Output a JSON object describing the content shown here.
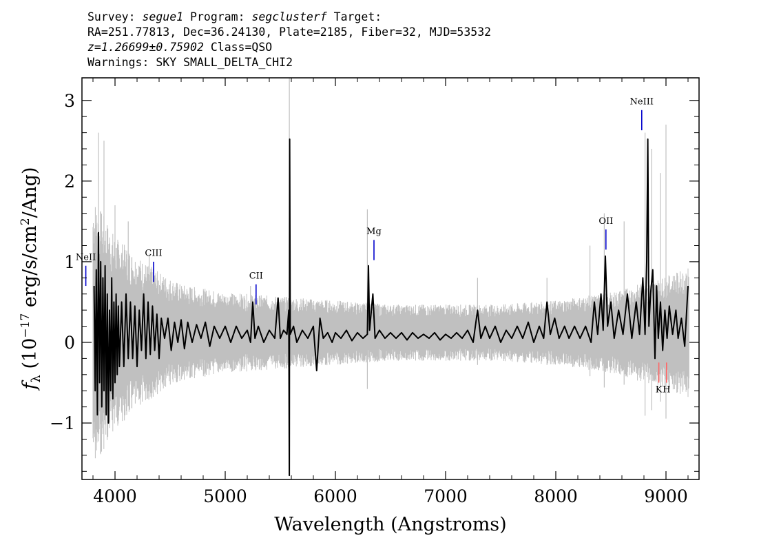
{
  "header": {
    "line1_prefix": "Survey: ",
    "survey": "segue1",
    "line1_mid": " Program: ",
    "program": "segclusterf",
    "line1_suffix": " Target:",
    "line2": "RA=251.77813, Dec=36.24130, Plate=2185, Fiber=32, MJD=53532",
    "redshift": "z=1.26699±0.75902",
    "class": " Class=QSO",
    "warnings": "Warnings: SKY SMALL_DELTA_CHI2"
  },
  "chart_data": {
    "type": "line",
    "xlabel": "Wavelength (Angstroms)",
    "ylabel": "f_λ (10^-17 erg/s/cm^2/Ang)",
    "xlim": [
      3700,
      9300
    ],
    "ylim": [
      -1.7,
      3.28
    ],
    "x_ticks": [
      {
        "value": 4000,
        "label": "4000"
      },
      {
        "value": 5000,
        "label": "5000"
      },
      {
        "value": 6000,
        "label": "6000"
      },
      {
        "value": 7000,
        "label": "7000"
      },
      {
        "value": 8000,
        "label": "8000"
      },
      {
        "value": 9000,
        "label": "9000"
      }
    ],
    "y_ticks": [
      {
        "value": -1,
        "label": "−1"
      },
      {
        "value": 0,
        "label": "0"
      },
      {
        "value": 1,
        "label": "1"
      },
      {
        "value": 2,
        "label": "2"
      },
      {
        "value": 3,
        "label": "3"
      }
    ],
    "series": [
      {
        "color": "#000000",
        "points": [
          [
            3810,
            0.7
          ],
          [
            3820,
            -0.6
          ],
          [
            3830,
            0.9
          ],
          [
            3840,
            -0.9
          ],
          [
            3850,
            1.36
          ],
          [
            3860,
            -0.5
          ],
          [
            3870,
            1.0
          ],
          [
            3880,
            -0.8
          ],
          [
            3890,
            0.8
          ],
          [
            3900,
            -0.6
          ],
          [
            3910,
            0.95
          ],
          [
            3920,
            -0.9
          ],
          [
            3930,
            0.6
          ],
          [
            3940,
            -1.0
          ],
          [
            3950,
            0.4
          ],
          [
            3960,
            -0.6
          ],
          [
            3970,
            0.8
          ],
          [
            3980,
            -0.7
          ],
          [
            3990,
            0.5
          ],
          [
            4000,
            -0.5
          ],
          [
            4010,
            0.6
          ],
          [
            4020,
            -0.4
          ],
          [
            4030,
            0.45
          ],
          [
            4040,
            -0.3
          ],
          [
            4060,
            0.5
          ],
          [
            4080,
            -0.3
          ],
          [
            4100,
            0.6
          ],
          [
            4120,
            -0.2
          ],
          [
            4140,
            0.5
          ],
          [
            4160,
            -0.2
          ],
          [
            4180,
            0.45
          ],
          [
            4200,
            -0.3
          ],
          [
            4220,
            0.4
          ],
          [
            4240,
            -0.1
          ],
          [
            4260,
            0.6
          ],
          [
            4280,
            -0.2
          ],
          [
            4300,
            0.5
          ],
          [
            4320,
            -0.15
          ],
          [
            4340,
            0.45
          ],
          [
            4360,
            -0.1
          ],
          [
            4380,
            0.35
          ],
          [
            4400,
            -0.2
          ],
          [
            4420,
            0.3
          ],
          [
            4450,
            0.05
          ],
          [
            4480,
            0.3
          ],
          [
            4510,
            -0.1
          ],
          [
            4540,
            0.25
          ],
          [
            4570,
            0.0
          ],
          [
            4600,
            0.28
          ],
          [
            4630,
            -0.08
          ],
          [
            4660,
            0.25
          ],
          [
            4700,
            0.0
          ],
          [
            4740,
            0.22
          ],
          [
            4780,
            0.05
          ],
          [
            4820,
            0.25
          ],
          [
            4860,
            -0.05
          ],
          [
            4900,
            0.2
          ],
          [
            4950,
            0.05
          ],
          [
            5000,
            0.2
          ],
          [
            5050,
            0.0
          ],
          [
            5100,
            0.2
          ],
          [
            5150,
            0.05
          ],
          [
            5200,
            0.15
          ],
          [
            5230,
            0.0
          ],
          [
            5250,
            0.5
          ],
          [
            5270,
            0.05
          ],
          [
            5300,
            0.2
          ],
          [
            5350,
            0.0
          ],
          [
            5400,
            0.15
          ],
          [
            5450,
            0.05
          ],
          [
            5480,
            0.55
          ],
          [
            5500,
            0.05
          ],
          [
            5530,
            0.15
          ],
          [
            5560,
            0.1
          ],
          [
            5577,
            0.4
          ],
          [
            5582,
            -1.65
          ],
          [
            5585,
            2.52
          ],
          [
            5590,
            0.1
          ],
          [
            5620,
            0.2
          ],
          [
            5650,
            0.0
          ],
          [
            5700,
            0.15
          ],
          [
            5750,
            0.05
          ],
          [
            5800,
            0.2
          ],
          [
            5830,
            -0.35
          ],
          [
            5860,
            0.3
          ],
          [
            5890,
            0.05
          ],
          [
            5930,
            0.12
          ],
          [
            5970,
            0.0
          ],
          [
            6000,
            0.12
          ],
          [
            6050,
            0.05
          ],
          [
            6100,
            0.15
          ],
          [
            6150,
            0.02
          ],
          [
            6200,
            0.12
          ],
          [
            6250,
            0.05
          ],
          [
            6290,
            0.1
          ],
          [
            6300,
            0.95
          ],
          [
            6310,
            0.15
          ],
          [
            6340,
            0.6
          ],
          [
            6360,
            0.05
          ],
          [
            6400,
            0.15
          ],
          [
            6450,
            0.05
          ],
          [
            6500,
            0.12
          ],
          [
            6550,
            0.05
          ],
          [
            6600,
            0.12
          ],
          [
            6650,
            0.03
          ],
          [
            6700,
            0.12
          ],
          [
            6750,
            0.05
          ],
          [
            6800,
            0.1
          ],
          [
            6850,
            0.05
          ],
          [
            6900,
            0.12
          ],
          [
            6950,
            0.03
          ],
          [
            7000,
            0.1
          ],
          [
            7050,
            0.05
          ],
          [
            7100,
            0.12
          ],
          [
            7150,
            0.05
          ],
          [
            7200,
            0.15
          ],
          [
            7250,
            0.0
          ],
          [
            7290,
            0.4
          ],
          [
            7320,
            0.05
          ],
          [
            7360,
            0.2
          ],
          [
            7400,
            0.05
          ],
          [
            7450,
            0.2
          ],
          [
            7500,
            0.0
          ],
          [
            7550,
            0.15
          ],
          [
            7600,
            0.05
          ],
          [
            7650,
            0.2
          ],
          [
            7700,
            0.05
          ],
          [
            7750,
            0.25
          ],
          [
            7800,
            0.0
          ],
          [
            7850,
            0.2
          ],
          [
            7890,
            0.05
          ],
          [
            7920,
            0.5
          ],
          [
            7950,
            0.1
          ],
          [
            7990,
            0.3
          ],
          [
            8030,
            0.05
          ],
          [
            8080,
            0.2
          ],
          [
            8120,
            0.05
          ],
          [
            8170,
            0.2
          ],
          [
            8220,
            0.05
          ],
          [
            8270,
            0.2
          ],
          [
            8320,
            0.0
          ],
          [
            8350,
            0.5
          ],
          [
            8380,
            0.1
          ],
          [
            8410,
            0.6
          ],
          [
            8430,
            0.15
          ],
          [
            8450,
            1.07
          ],
          [
            8470,
            0.2
          ],
          [
            8500,
            0.5
          ],
          [
            8530,
            0.05
          ],
          [
            8570,
            0.4
          ],
          [
            8610,
            0.1
          ],
          [
            8650,
            0.6
          ],
          [
            8690,
            0.05
          ],
          [
            8730,
            0.5
          ],
          [
            8760,
            0.1
          ],
          [
            8790,
            0.8
          ],
          [
            8810,
            0.1
          ],
          [
            8825,
            1.0
          ],
          [
            8835,
            2.52
          ],
          [
            8845,
            0.2
          ],
          [
            8860,
            0.6
          ],
          [
            8880,
            0.9
          ],
          [
            8900,
            -0.2
          ],
          [
            8915,
            0.7
          ],
          [
            8930,
            0.05
          ],
          [
            8950,
            0.5
          ],
          [
            8970,
            -0.1
          ],
          [
            8990,
            0.4
          ],
          [
            9010,
            0.05
          ],
          [
            9030,
            0.45
          ],
          [
            9060,
            0.1
          ],
          [
            9090,
            0.4
          ],
          [
            9110,
            0.05
          ],
          [
            9140,
            0.3
          ],
          [
            9170,
            -0.05
          ],
          [
            9200,
            0.7
          ]
        ]
      }
    ],
    "error_band": {
      "color": "#c0c0c0",
      "bounds": [
        [
          3800,
          1.7
        ],
        [
          4000,
          1.2
        ],
        [
          4200,
          0.95
        ],
        [
          4400,
          0.75
        ],
        [
          4600,
          0.6
        ],
        [
          5000,
          0.5
        ],
        [
          5500,
          0.45
        ],
        [
          6000,
          0.4
        ],
        [
          6500,
          0.35
        ],
        [
          7000,
          0.35
        ],
        [
          7500,
          0.35
        ],
        [
          8000,
          0.4
        ],
        [
          8500,
          0.5
        ],
        [
          9000,
          0.7
        ],
        [
          9200,
          0.8
        ]
      ],
      "spikes": [
        [
          3850,
          2.6
        ],
        [
          3900,
          2.5
        ],
        [
          4000,
          1.7
        ],
        [
          4120,
          1.5
        ],
        [
          4310,
          1.1
        ],
        [
          5230,
          0.7
        ],
        [
          5582,
          3.3
        ],
        [
          6290,
          1.65
        ],
        [
          7290,
          0.8
        ],
        [
          7920,
          0.8
        ],
        [
          8310,
          1.2
        ],
        [
          8440,
          1.6
        ],
        [
          8620,
          1.5
        ],
        [
          8810,
          2.6
        ],
        [
          8870,
          2.4
        ],
        [
          8950,
          2.1
        ],
        [
          9000,
          2.7
        ]
      ]
    },
    "lines": [
      {
        "label": "NeII",
        "x": 3735,
        "color": "#0000cc",
        "y_from": 0.7,
        "y_to": 0.95,
        "label_y": 1.02
      },
      {
        "label": "CIII",
        "x": 4350,
        "color": "#0000cc",
        "y_from": 0.75,
        "y_to": 1.0,
        "label_y": 1.07
      },
      {
        "label": "CII",
        "x": 5280,
        "color": "#0000cc",
        "y_from": 0.47,
        "y_to": 0.72,
        "label_y": 0.79
      },
      {
        "label": "Mg",
        "x": 6350,
        "color": "#0000cc",
        "y_from": 1.02,
        "y_to": 1.27,
        "label_y": 1.34
      },
      {
        "label": "OII",
        "x": 8455,
        "color": "#0000cc",
        "y_from": 1.15,
        "y_to": 1.4,
        "label_y": 1.47
      },
      {
        "label": "NeIII",
        "x": 8780,
        "color": "#0000cc",
        "y_from": 2.63,
        "y_to": 2.88,
        "label_y": 2.95
      },
      {
        "label": "K",
        "x": 8935,
        "color": "#ff6666",
        "y_from": -0.25,
        "y_to": -0.5,
        "label_y": -0.62
      },
      {
        "label": "H",
        "x": 9005,
        "color": "#ff6666",
        "y_from": -0.25,
        "y_to": -0.5,
        "label_y": -0.62
      }
    ]
  }
}
